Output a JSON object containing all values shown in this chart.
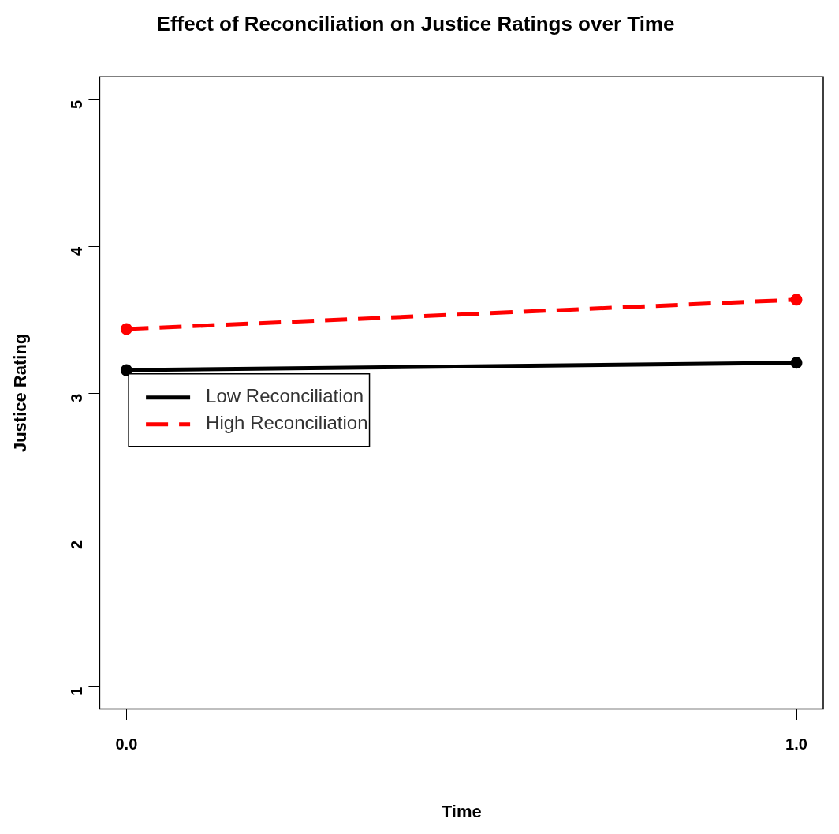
{
  "chart_data": {
    "type": "line",
    "title": "Effect of Reconciliation on Justice Ratings over Time",
    "xlabel": "Time",
    "ylabel": "Justice Rating",
    "x": [
      0,
      1
    ],
    "series": [
      {
        "name": "Low Reconciliation",
        "color": "#000000",
        "values": [
          3.16,
          3.21
        ],
        "line_style": "solid"
      },
      {
        "name": "High Reconciliation",
        "color": "#ff0000",
        "values": [
          3.44,
          3.64
        ],
        "line_style": "dashed"
      }
    ],
    "xlim": [
      -0.04,
      1.04
    ],
    "xticks": [
      {
        "value": 0,
        "label": "0.0"
      },
      {
        "value": 1,
        "label": "1.0"
      }
    ],
    "ylim": [
      0.85,
      5.16
    ],
    "yticks": [
      1,
      2,
      3,
      4,
      5
    ],
    "grid": false,
    "legend": "left",
    "marker": "circle"
  }
}
